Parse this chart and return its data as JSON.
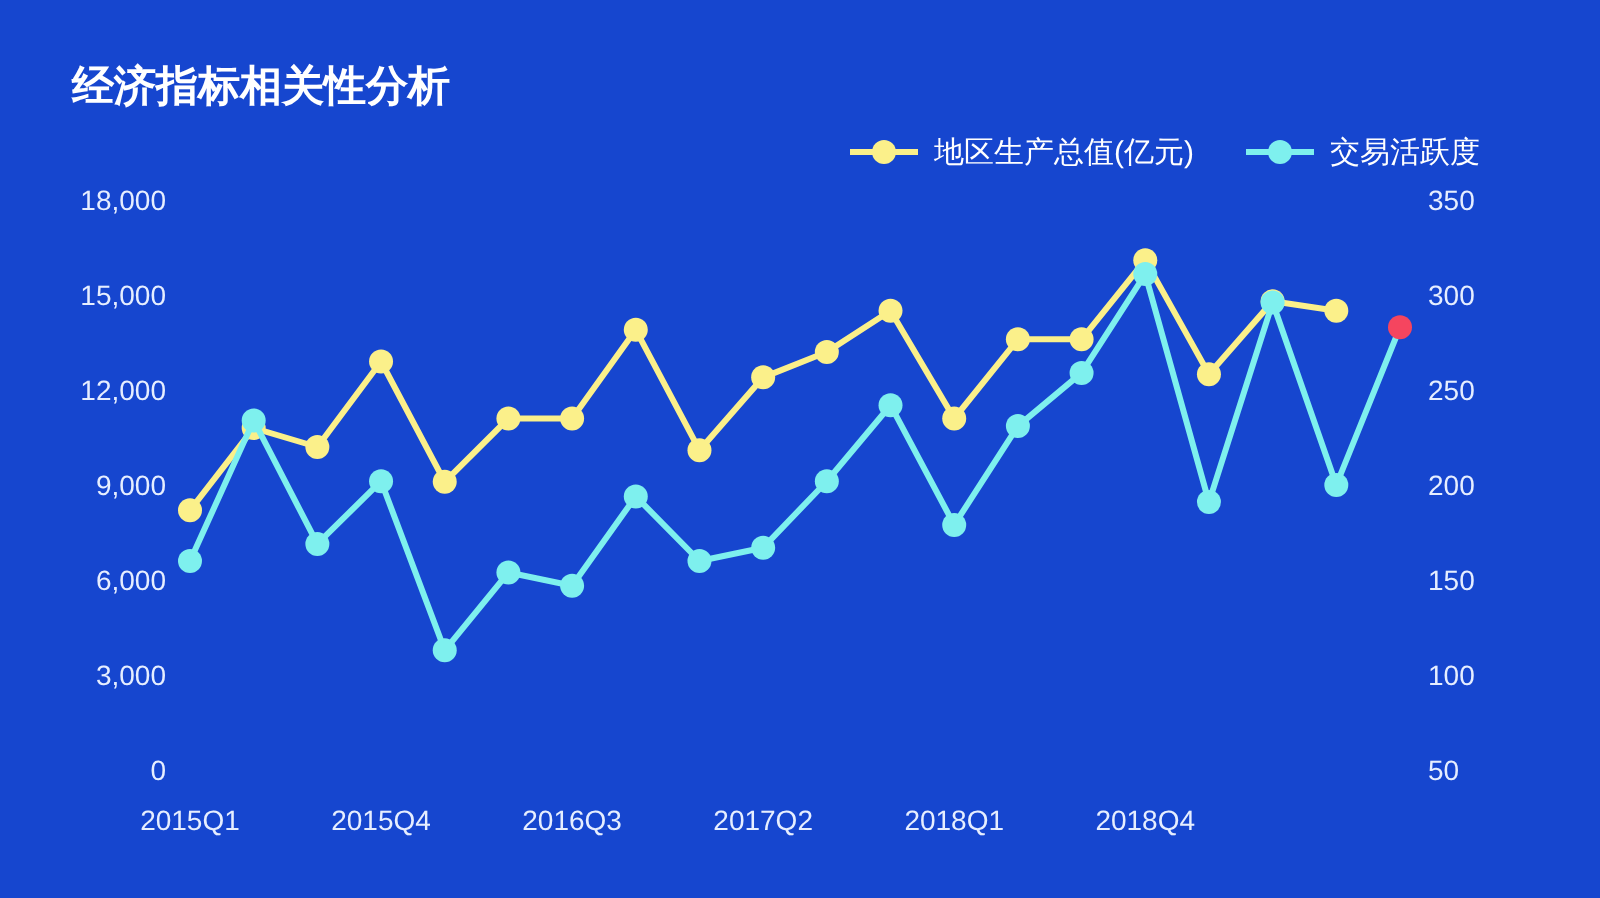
{
  "chart_data": {
    "type": "line",
    "title": "经济指标相关性分析",
    "categories": [
      "2015Q1",
      null,
      null,
      "2015Q4",
      null,
      null,
      "2016Q3",
      null,
      null,
      "2017Q2",
      null,
      null,
      "2018Q1",
      null,
      null,
      "2018Q4",
      null,
      null,
      null,
      null
    ],
    "series": [
      {
        "name": "地区生产总值(亿元)",
        "color": "#fbf08a",
        "values": [
          8200,
          10800,
          10200,
          12900,
          9100,
          11100,
          11100,
          13900,
          10100,
          12400,
          13200,
          14500,
          11100,
          13600,
          13600,
          16100,
          12500,
          14800,
          14500,
          null
        ]
      },
      {
        "name": "交易活跃度",
        "color": "#7ef0ee",
        "axis": "y2",
        "values": [
          160,
          234,
          169,
          202,
          113,
          154,
          147,
          194,
          160,
          167,
          202,
          242,
          179,
          231,
          259,
          311,
          191,
          296,
          200,
          283
        ],
        "colors": [
          "#7ef0ee",
          "#7ef0ee",
          "#7ef0ee",
          "#7ef0ee",
          "#7ef0ee",
          "#7ef0ee",
          "#7ef0ee",
          "#7ef0ee",
          "#7ef0ee",
          "#7ef0ee",
          "#7ef0ee",
          "#7ef0ee",
          "#7ef0ee",
          "#7ef0ee",
          "#7ef0ee",
          "#7ef0ee",
          "#7ef0ee",
          "#7ef0ee",
          "#7ef0ee",
          "#f5455f"
        ]
      }
    ],
    "ylim": [
      0,
      18000
    ],
    "yticks": [
      0,
      {
        "value": 3000,
        "label": "3,000"
      },
      {
        "value": 6000,
        "label": "6,000"
      },
      {
        "value": 9000,
        "label": "9,000"
      },
      {
        "value": 12000,
        "label": "12,000"
      },
      {
        "value": 15000,
        "label": "15,000"
      },
      {
        "value": 18000,
        "label": "18,000"
      }
    ],
    "y2lim": [
      50,
      350
    ],
    "y2ticks": [
      50,
      100,
      150,
      200,
      250,
      300,
      350
    ],
    "legend": "top right",
    "marker": "circle"
  }
}
